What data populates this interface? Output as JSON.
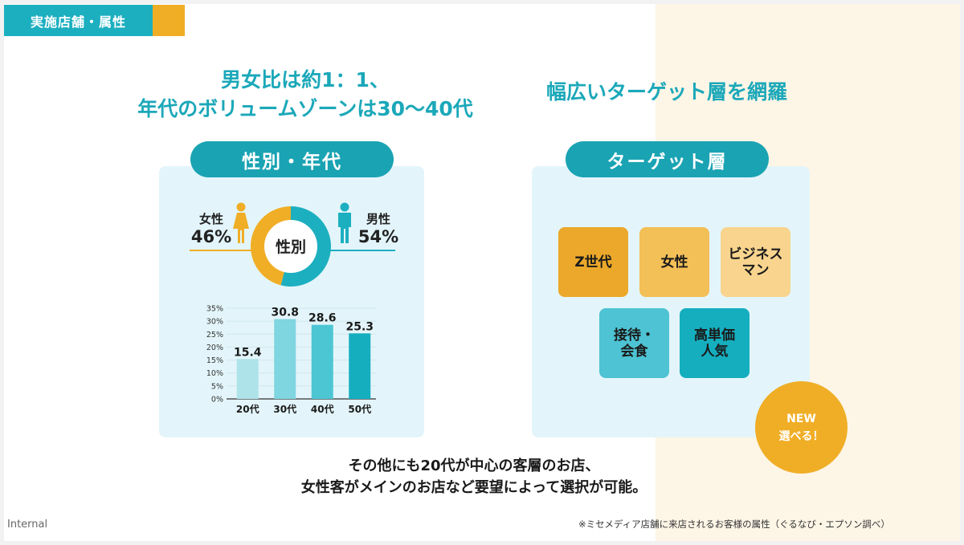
{
  "section_tab": {
    "label": "実施店舗・属性"
  },
  "headlines": {
    "left_line1": "男女比は約1：1、",
    "left_line2": "年代のボリュームゾーンは30〜40代",
    "right": "幅広いターゲット層を網羅"
  },
  "gender_age_panel": {
    "title": "性別・年代",
    "donut_center": "性別",
    "female": {
      "label": "女性",
      "percent": "46%",
      "value": 46,
      "icon": "woman-icon"
    },
    "male": {
      "label": "男性",
      "percent": "54%",
      "value": 54,
      "icon": "man-icon"
    }
  },
  "target_panel": {
    "title": "ターゲット層",
    "tiles": [
      {
        "label": "Z世代",
        "color": "#eca82a"
      },
      {
        "label": "女性",
        "color": "#f3bf57"
      },
      {
        "label": "ビジネス\nマン",
        "color": "#f8d48e"
      },
      {
        "label": "接待・\n会食",
        "color": "#4dc3d3"
      },
      {
        "label": "高単価\n人気",
        "color": "#15aebf"
      }
    ]
  },
  "new_badge": {
    "line1": "NEW",
    "line2": "選べる！"
  },
  "bottom_text": {
    "line1": "その他にも20代が中心の客層のお店、",
    "line2": "女性客がメインのお店など要望によって選択が可能。"
  },
  "footer": {
    "left": "Internal",
    "note": "※ミセメディア店舗に来店されるお客様の属性（ぐるなび・エプソン調べ）"
  },
  "colors": {
    "teal": "#1cafc0",
    "orange": "#f0ae26",
    "panel_bg": "#e3f5fa",
    "beige_bg": "#fdf5e6"
  },
  "chart_data": [
    {
      "type": "pie",
      "title": "性別",
      "categories": [
        "女性",
        "男性"
      ],
      "values": [
        46,
        54
      ],
      "colors": [
        "#f0ae26",
        "#1cafc0"
      ]
    },
    {
      "type": "bar",
      "title": "年代",
      "categories": [
        "20代",
        "30代",
        "40代",
        "50代"
      ],
      "values": [
        15.4,
        30.8,
        28.6,
        25.3
      ],
      "data_labels": [
        "15.4",
        "30.8",
        "28.6",
        "25.3"
      ],
      "bar_colors": [
        "#aee3ea",
        "#7fd5e0",
        "#4dc6d4",
        "#15aebf"
      ],
      "yticks": [
        "0%",
        "5%",
        "10%",
        "15%",
        "20%",
        "25%",
        "30%",
        "35%"
      ],
      "ylim": [
        0,
        35
      ],
      "xlabel": "",
      "ylabel": "",
      "grid": true
    }
  ]
}
